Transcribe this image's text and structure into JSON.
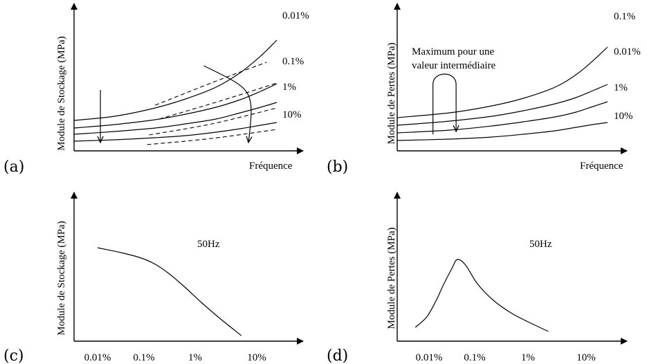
{
  "chart_data": [
    {
      "panel": "(a)",
      "type": "line",
      "xlabel": "Fréquence",
      "ylabel": "Module de Stockage (MPa)",
      "series": [
        {
          "name": "0.01%",
          "curve": [
            [
              0,
              44
            ],
            [
              0.2,
              50
            ],
            [
              0.4,
              62
            ],
            [
              0.55,
              75
            ],
            [
              0.7,
              92
            ],
            [
              0.82,
              113
            ],
            [
              0.92,
              137
            ],
            [
              1.0,
              160
            ]
          ]
        },
        {
          "name": "0.1%",
          "curve": [
            [
              0,
              33
            ],
            [
              0.2,
              38
            ],
            [
              0.4,
              45
            ],
            [
              0.55,
              53
            ],
            [
              0.7,
              63
            ],
            [
              0.82,
              74
            ],
            [
              0.92,
              86
            ],
            [
              1.0,
              97
            ]
          ]
        },
        {
          "name": "1%",
          "curve": [
            [
              0,
              24
            ],
            [
              0.2,
              28
            ],
            [
              0.4,
              33
            ],
            [
              0.55,
              39
            ],
            [
              0.7,
              46
            ],
            [
              0.82,
              55
            ],
            [
              0.92,
              63
            ],
            [
              1.0,
              70
            ]
          ]
        },
        {
          "name": "10%",
          "curve": [
            [
              0,
              14
            ],
            [
              0.2,
              16
            ],
            [
              0.4,
              19
            ],
            [
              0.55,
              22
            ],
            [
              0.7,
              27
            ],
            [
              0.82,
              32
            ],
            [
              0.92,
              37
            ],
            [
              1.0,
              41
            ]
          ]
        }
      ],
      "dashed_series": [
        {
          "curve": [
            [
              0.4,
              66
            ],
            [
              0.72,
              103
            ],
            [
              0.95,
              128
            ]
          ]
        },
        {
          "curve": [
            [
              0.42,
              46
            ],
            [
              0.72,
              72
            ],
            [
              1.0,
              98
            ]
          ]
        },
        {
          "curve": [
            [
              0.37,
              23
            ],
            [
              0.68,
              39
            ],
            [
              1.0,
              62
            ]
          ]
        },
        {
          "curve": [
            [
              0.36,
              9
            ],
            [
              0.68,
              18
            ],
            [
              1.0,
              31
            ]
          ]
        }
      ],
      "arrows": [
        {
          "from": [
            0.13,
            88
          ],
          "to": [
            0.13,
            12
          ]
        },
        {
          "from": [
            0.64,
            123
          ],
          "curve_to": [
            0.86,
            12
          ]
        }
      ]
    },
    {
      "panel": "(b)",
      "type": "line",
      "xlabel": "Fréquence",
      "ylabel": "Module de Pertes (MPa)",
      "annotation_lines": [
        "Maximum pour une",
        "valeur intermédiaire"
      ],
      "series": [
        {
          "name": "0.1%",
          "curve": [
            [
              0,
              48
            ],
            [
              0.25,
              55
            ],
            [
              0.45,
              65
            ],
            [
              0.6,
              76
            ],
            [
              0.75,
              92
            ],
            [
              0.85,
              110
            ],
            [
              0.93,
              130
            ],
            [
              1.0,
              150
            ]
          ]
        },
        {
          "name": "0.01%",
          "curve": [
            [
              0,
              37
            ],
            [
              0.25,
              43
            ],
            [
              0.45,
              50
            ],
            [
              0.6,
              58
            ],
            [
              0.75,
              68
            ],
            [
              0.85,
              77
            ],
            [
              0.93,
              87
            ],
            [
              1.0,
              96
            ]
          ]
        },
        {
          "name": "1%",
          "curve": [
            [
              0,
              26
            ],
            [
              0.25,
              30
            ],
            [
              0.45,
              36
            ],
            [
              0.6,
              42
            ],
            [
              0.75,
              49
            ],
            [
              0.85,
              56
            ],
            [
              0.93,
              64
            ],
            [
              1.0,
              71
            ]
          ]
        },
        {
          "name": "10%",
          "curve": [
            [
              0,
              15
            ],
            [
              0.25,
              17
            ],
            [
              0.45,
              20
            ],
            [
              0.6,
              24
            ],
            [
              0.75,
              29
            ],
            [
              0.85,
              34
            ],
            [
              0.93,
              38
            ],
            [
              1.0,
              41
            ]
          ]
        }
      ],
      "arrows": [
        {
          "path": "loop",
          "from": [
            0.17,
            24
          ],
          "peak": [
            0.23,
            110
          ],
          "to": [
            0.28,
            28
          ]
        }
      ]
    },
    {
      "panel": "(c)",
      "type": "line",
      "ylabel": "Module de Stockage (MPa)",
      "annotation": "50Hz",
      "x_tick_labels": [
        "0.01%",
        "0.1%",
        "1%",
        "10%"
      ],
      "series": [
        {
          "curve": [
            [
              0,
              135
            ],
            [
              0.5,
              128
            ],
            [
              0.9,
              121
            ],
            [
              1.2,
              112
            ],
            [
              1.5,
              97
            ],
            [
              1.8,
              78
            ],
            [
              2.1,
              56
            ],
            [
              2.4,
              33
            ],
            [
              2.75,
              8
            ]
          ]
        }
      ]
    },
    {
      "panel": "(d)",
      "type": "line",
      "ylabel": "Module de Pertes (MPa)",
      "annotation": "50Hz",
      "x_tick_labels": [
        "0.01%",
        "0.1%",
        "1%",
        "10%"
      ],
      "series": [
        {
          "curve": [
            [
              -0.3,
              20
            ],
            [
              -0.05,
              35
            ],
            [
              0.15,
              58
            ],
            [
              0.32,
              82
            ],
            [
              0.5,
              105
            ],
            [
              0.62,
              118
            ],
            [
              0.8,
              110
            ],
            [
              1.05,
              83
            ],
            [
              1.35,
              59
            ],
            [
              1.7,
              40
            ],
            [
              2.05,
              26
            ],
            [
              2.35,
              14
            ]
          ]
        }
      ]
    }
  ]
}
